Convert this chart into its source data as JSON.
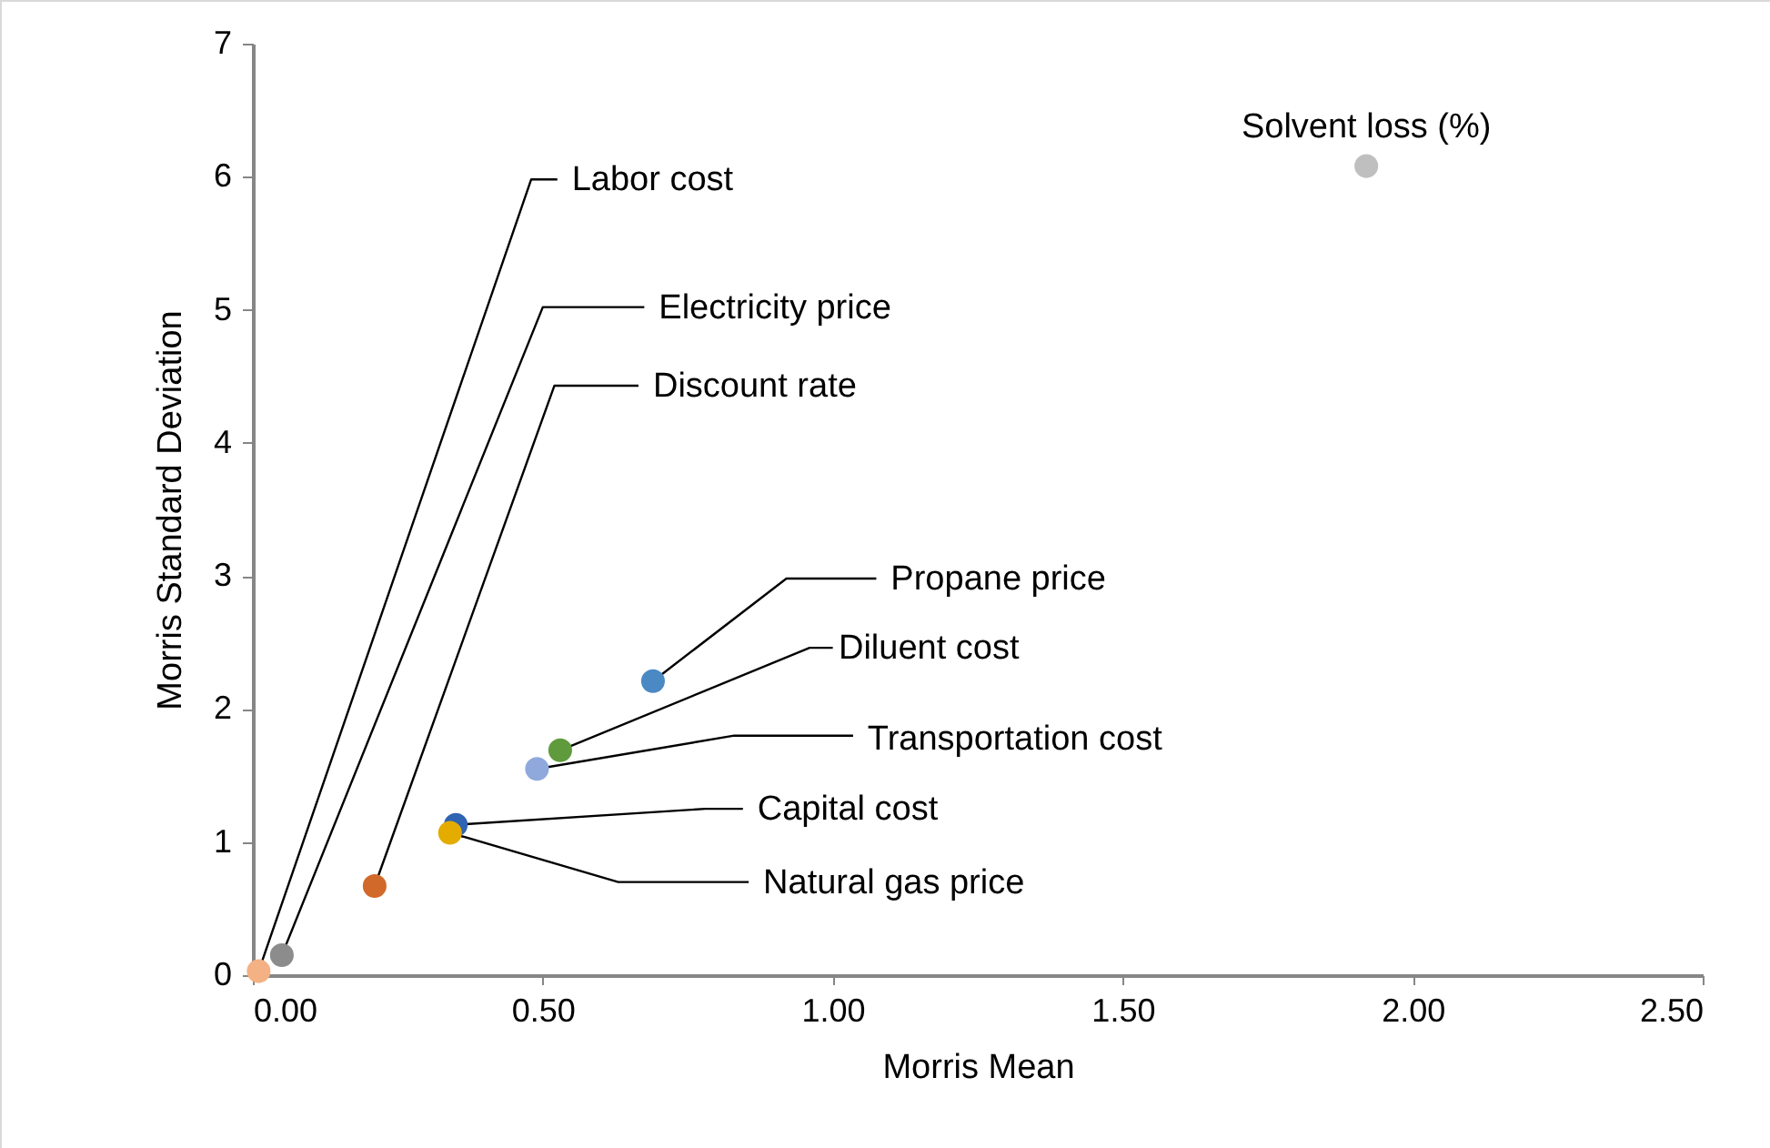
{
  "chart_data": {
    "type": "scatter",
    "xlabel": "Morris Mean",
    "ylabel": "Morris Standard Deviation",
    "xlim": [
      0,
      2.5
    ],
    "xticks": [
      {
        "value": 0,
        "label": "0.00"
      },
      {
        "value": 0.5,
        "label": "0.50"
      },
      {
        "value": 1,
        "label": "1.00"
      },
      {
        "value": 1.5,
        "label": "1.50"
      },
      {
        "value": 2,
        "label": "2.00"
      },
      {
        "value": 2.5,
        "label": "2.50"
      }
    ],
    "ylim": [
      0,
      7
    ],
    "yticks": [
      0,
      1,
      2,
      3,
      4,
      5,
      6,
      7
    ],
    "grid": false,
    "legend": false,
    "marker": "circle",
    "series": [
      {
        "color": "#f4b183",
        "x": [
          0.01
        ],
        "values": [
          0.03
        ]
      },
      {
        "color": "#8c8c8c",
        "x": [
          0.05
        ],
        "values": [
          0.15
        ]
      },
      {
        "color": "#d0692a",
        "x": [
          0.21
        ],
        "values": [
          0.67
        ]
      },
      {
        "color": "#4a89c4",
        "x": [
          0.69
        ],
        "values": [
          2.21
        ]
      },
      {
        "color": "#5f9a3c",
        "x": [
          0.53
        ],
        "values": [
          1.69
        ]
      },
      {
        "color": "#8fa9dc",
        "x": [
          0.49
        ],
        "values": [
          1.55
        ]
      },
      {
        "color": "#2f64b3",
        "x": [
          0.35
        ],
        "values": [
          1.13
        ]
      },
      {
        "color": "#e5ac00",
        "x": [
          0.34
        ],
        "values": [
          1.07
        ]
      },
      {
        "color": "#bfbfbf",
        "x": [
          1.92
        ],
        "values": [
          6.08
        ]
      }
    ],
    "annotations": [
      {
        "text": "Labor cost",
        "x": 0.01,
        "y": 0.03
      },
      {
        "text": "Electricity price",
        "x": 0.05,
        "y": 0.15
      },
      {
        "text": "Discount rate",
        "x": 0.21,
        "y": 0.67
      },
      {
        "text": "Propane price",
        "x": 0.69,
        "y": 2.21
      },
      {
        "text": "Diluent cost",
        "x": 0.53,
        "y": 1.69
      },
      {
        "text": "Transportation cost",
        "x": 0.49,
        "y": 1.55
      },
      {
        "text": "Capital cost",
        "x": 0.35,
        "y": 1.13
      },
      {
        "text": "Natural gas price",
        "x": 0.34,
        "y": 1.07
      },
      {
        "text": "Solvent loss (%)",
        "x": 1.92,
        "y": 6.08
      }
    ]
  }
}
